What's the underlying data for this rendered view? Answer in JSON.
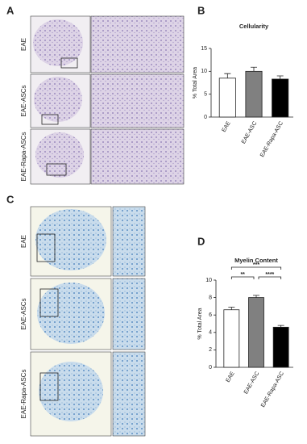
{
  "panels": {
    "a": "A",
    "b": "B",
    "c": "C",
    "d": "D"
  },
  "image_rows": {
    "a": [
      "EAE",
      "EAE-ASCs",
      "EAE-Rapa-ASCs"
    ],
    "c": [
      "EAE",
      "EAE-ASCs",
      "EAE-Rapa-ASCs"
    ]
  },
  "chart_data": [
    {
      "type": "bar",
      "title": "Cellularity",
      "y_label": "% Total Area",
      "categories": [
        "EAE",
        "EAE-ASC",
        "EAE-Rapa-ASC"
      ],
      "values": [
        8.5,
        10,
        8.3
      ],
      "errors": [
        1.0,
        0.9,
        0.7
      ],
      "colors": [
        "#ffffff",
        "#808080",
        "#000000"
      ],
      "ylim": [
        0,
        15
      ],
      "yticks": [
        0,
        5,
        10,
        15
      ]
    },
    {
      "type": "bar",
      "title": "Myelin Content",
      "y_label": "% Total Area",
      "categories": [
        "EAE",
        "EAE-ASC",
        "EAE-Rapa-ASC"
      ],
      "values": [
        6.6,
        8.0,
        4.6
      ],
      "errors": [
        0.3,
        0.25,
        0.2
      ],
      "colors": [
        "#ffffff",
        "#808080",
        "#000000"
      ],
      "ylim": [
        0,
        10
      ],
      "yticks": [
        0,
        2,
        4,
        6,
        8,
        10
      ],
      "significance": [
        {
          "from": 0,
          "to": 2,
          "label": "***"
        },
        {
          "from": 0,
          "to": 1,
          "label": "**"
        },
        {
          "from": 1,
          "to": 2,
          "label": "****"
        }
      ]
    }
  ]
}
